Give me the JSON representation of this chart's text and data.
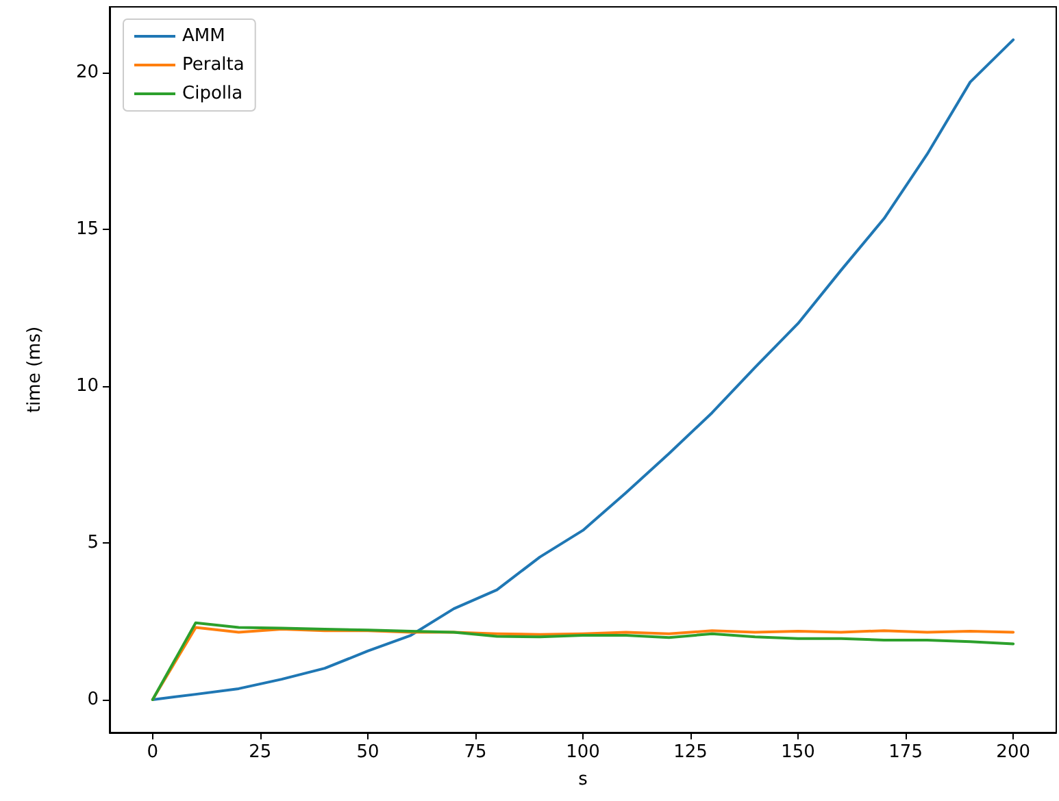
{
  "chart_data": {
    "type": "line",
    "xlabel": "s",
    "ylabel": "time (ms)",
    "x": [
      0,
      10,
      20,
      30,
      40,
      50,
      60,
      70,
      80,
      90,
      100,
      110,
      120,
      130,
      140,
      150,
      160,
      170,
      180,
      190,
      200
    ],
    "series": [
      {
        "name": "AMM",
        "color": "#1f77b4",
        "values": [
          0,
          0.17,
          0.35,
          0.65,
          1.0,
          1.55,
          2.05,
          2.9,
          3.5,
          4.55,
          5.4,
          6.6,
          7.85,
          9.15,
          10.6,
          12.0,
          13.7,
          15.35,
          17.4,
          19.7,
          21.05
        ]
      },
      {
        "name": "Peralta",
        "color": "#ff7f0e",
        "values": [
          0,
          2.3,
          2.15,
          2.25,
          2.2,
          2.2,
          2.15,
          2.15,
          2.1,
          2.08,
          2.1,
          2.15,
          2.1,
          2.2,
          2.15,
          2.18,
          2.15,
          2.2,
          2.15,
          2.18,
          2.15
        ]
      },
      {
        "name": "Cipolla",
        "color": "#2ca02c",
        "values": [
          0,
          2.45,
          2.3,
          2.28,
          2.25,
          2.22,
          2.18,
          2.15,
          2.02,
          2.0,
          2.05,
          2.05,
          1.98,
          2.1,
          2.0,
          1.95,
          1.95,
          1.9,
          1.9,
          1.85,
          1.78
        ]
      }
    ],
    "xlim": [
      -10,
      210
    ],
    "xticks": [
      0,
      25,
      50,
      75,
      100,
      125,
      150,
      175,
      200
    ],
    "ylim": [
      -1.05,
      22.1
    ],
    "yticks": [
      0,
      5,
      10,
      15,
      20
    ],
    "legend": "top left",
    "grid": false,
    "marker": "none",
    "line_style": "solid"
  }
}
